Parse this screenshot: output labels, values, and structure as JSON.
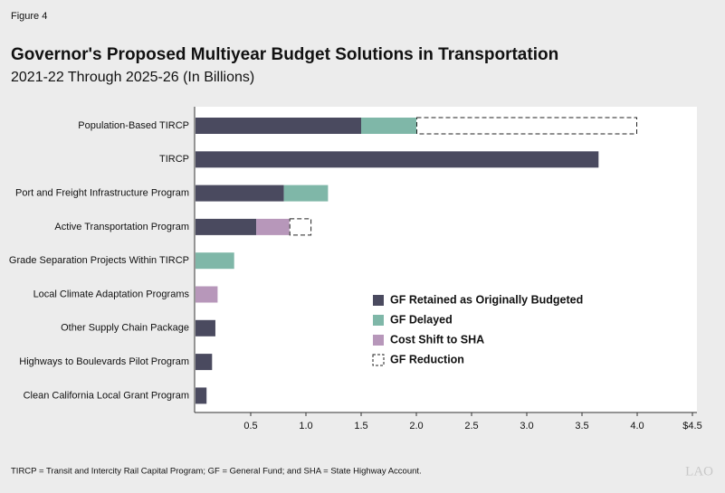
{
  "chart_data": {
    "type": "stacked-hbar",
    "figure_label": "Figure 4",
    "title": "Governor's Proposed Multiyear Budget Solutions in Transportation",
    "subtitle": "2021-22 Through 2025-26 (In Billions)",
    "categories": [
      "Population-Based TIRCP",
      "TIRCP",
      "Port and Freight Infrastructure Program",
      "Active Transportation Program",
      "Grade Separation Projects Within TIRCP",
      "Local Climate Adaptation Programs",
      "Other Supply Chain Package",
      "Highways to Boulevards Pilot Program",
      "Clean California Local Grant Program"
    ],
    "series": [
      {
        "name": "GF Retained as Originally Budgeted",
        "color": "#4a4a5f",
        "values": [
          1.5,
          3.65,
          0.8,
          0.55,
          null,
          null,
          0.18,
          0.15,
          0.1
        ]
      },
      {
        "name": "GF Delayed",
        "color": "#7fb7a8",
        "values": [
          0.5,
          null,
          0.4,
          null,
          0.35,
          null,
          null,
          null,
          null
        ]
      },
      {
        "name": "Cost Shift to SHA",
        "color": "#b797ba",
        "values": [
          null,
          null,
          null,
          0.3,
          null,
          0.2,
          null,
          null,
          null
        ]
      },
      {
        "name": "GF Reduction",
        "color": "#222222",
        "dashed": true,
        "values": [
          2.0,
          null,
          null,
          0.2,
          null,
          null,
          null,
          null,
          null
        ]
      }
    ],
    "xlim": [
      0,
      4.5
    ],
    "xticks": [
      0.5,
      {
        "value": 1,
        "label": "1.0"
      },
      1.5,
      {
        "value": 2,
        "label": "2.0"
      },
      2.5,
      {
        "value": 3,
        "label": "3.0"
      },
      3.5,
      {
        "value": 4,
        "label": "4.0"
      },
      {
        "value": 4.5,
        "label": "$4.5"
      }
    ],
    "footnote": "TIRCP = Transit and Intercity Rail Capital Program; GF = General Fund; and SHA = State Highway Account.",
    "logo": "LAO"
  }
}
